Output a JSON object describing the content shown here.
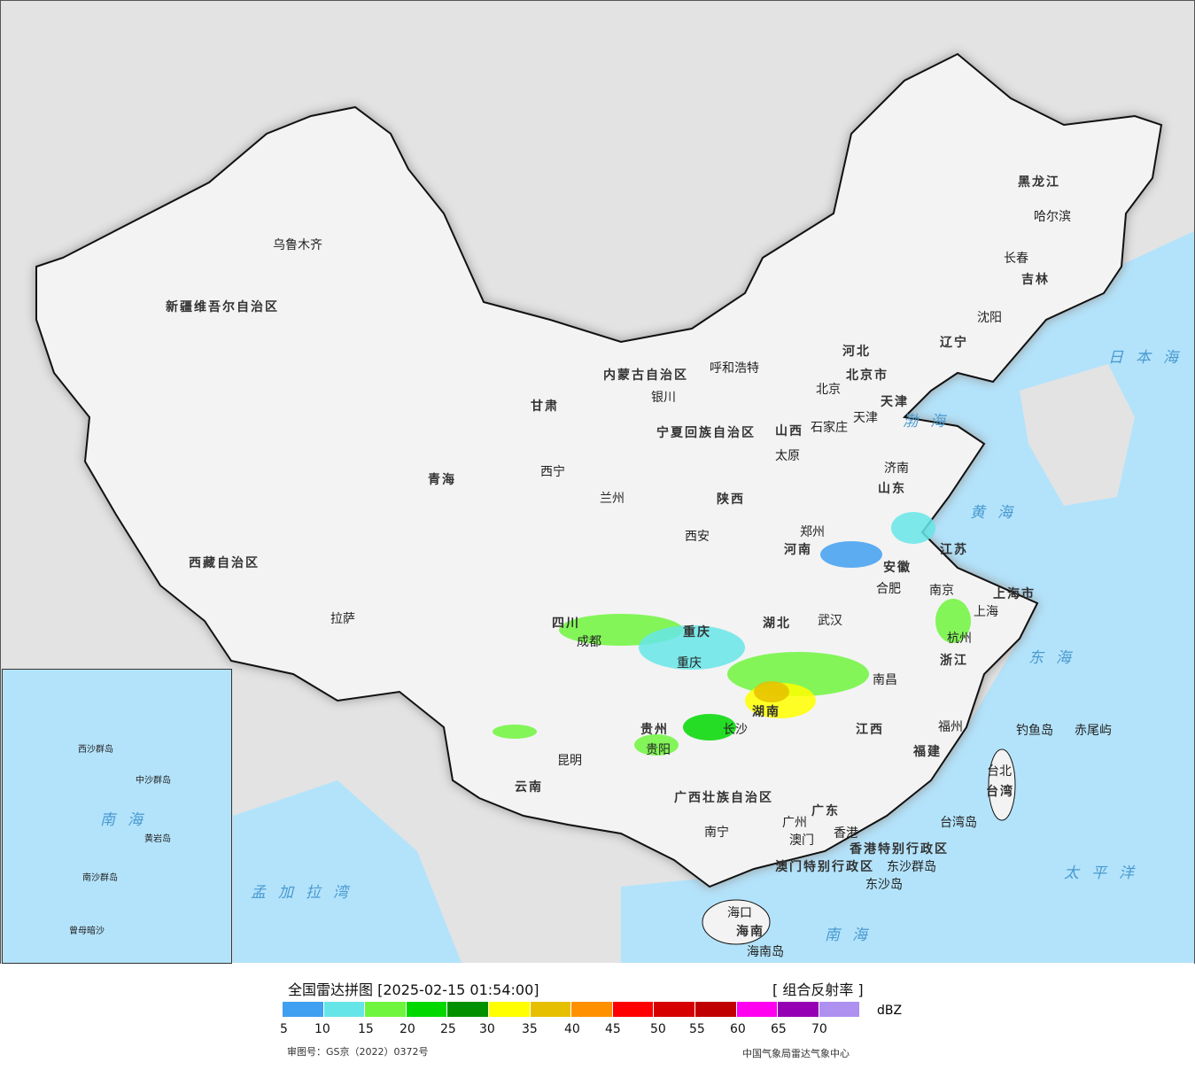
{
  "legend": {
    "title": "全国雷达拼图 [2025-02-15 01:54:00]",
    "product": "[ 组合反射率 ]",
    "unit": "dBZ",
    "approval": "审图号：GS京（2022）0372号",
    "agency": "中国气象局雷达气象中心",
    "colors": [
      "#3f9ff0",
      "#66e5e8",
      "#6ff53d",
      "#00d800",
      "#009000",
      "#ffff00",
      "#e6c000",
      "#ff9000",
      "#ff0000",
      "#d60000",
      "#c00000",
      "#ff00f0",
      "#9600b4",
      "#ad90f0"
    ],
    "ticks": [
      "5",
      "10",
      "15",
      "20",
      "25",
      "30",
      "35",
      "40",
      "45",
      "50",
      "55",
      "60",
      "65",
      "70"
    ]
  },
  "map": {
    "colors": {
      "ocean": "#b3e3fb",
      "land": "#f3f3f3",
      "outside": "#e3e3e3",
      "border": "#111"
    },
    "provinces": [
      "新疆维吾尔自治区",
      "西藏自治区",
      "青海",
      "甘肃",
      "内蒙古自治区",
      "黑龙江",
      "吉林",
      "辽宁",
      "河北",
      "山西",
      "陕西",
      "河南",
      "山东",
      "江苏",
      "安徽",
      "湖北",
      "四川",
      "重庆",
      "贵州",
      "云南",
      "湖南",
      "江西",
      "浙江",
      "福建",
      "广西壮族自治区",
      "广东",
      "海南",
      "台湾",
      "宁夏回族自治区",
      "北京市",
      "天津",
      "上海市",
      "香港特别行政区",
      "澳门特别行政区"
    ],
    "cities": [
      "乌鲁木齐",
      "拉萨",
      "西宁",
      "兰州",
      "银川",
      "呼和浩特",
      "北京",
      "天津",
      "石家庄",
      "太原",
      "西安",
      "郑州",
      "济南",
      "南京",
      "合肥",
      "上海",
      "杭州",
      "武汉",
      "长沙",
      "南昌",
      "福州",
      "台北",
      "成都",
      "重庆",
      "贵阳",
      "昆明",
      "南宁",
      "广州",
      "香港",
      "澳门",
      "海口",
      "哈尔滨",
      "长春",
      "沈阳",
      "钓鱼岛",
      "赤尾屿",
      "东沙岛",
      "东沙群岛",
      "台湾岛",
      "海南岛"
    ],
    "seas": [
      "日本海",
      "渤海",
      "黄海",
      "东海",
      "太平洋",
      "南海",
      "孟加拉湾"
    ],
    "inset": [
      "南海",
      "南沙群岛",
      "中沙群岛",
      "西沙群岛",
      "黄岩岛",
      "曾母暗沙"
    ]
  }
}
